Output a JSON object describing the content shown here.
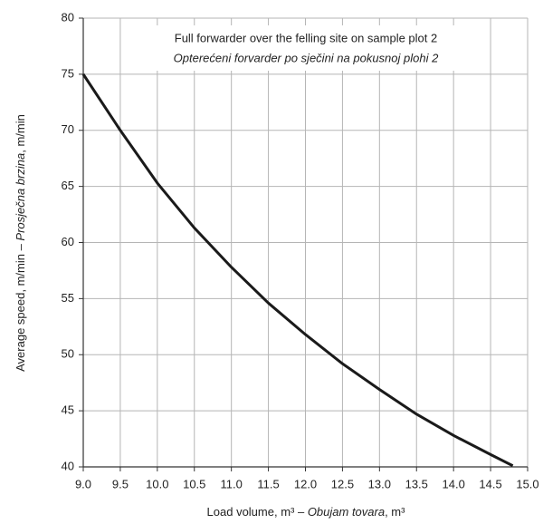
{
  "chart_data": {
    "type": "line",
    "title": [
      "Full forwarder over the felling site on sample plot 2",
      "Opterećeni forvarder po sječini na pokusnoj plohi 2"
    ],
    "xlabel": [
      "Load volume, m³ – ",
      "Obujam tovara",
      ", m³"
    ],
    "ylabel": [
      "Average speed, m/min – ",
      "Prosječna brzina",
      ", m/min"
    ],
    "x": [
      9.0,
      9.5,
      10.0,
      10.5,
      11.0,
      11.5,
      12.0,
      12.5,
      13.0,
      13.5,
      14.0,
      14.5,
      14.8
    ],
    "values": [
      75,
      70,
      65.3,
      61.3,
      57.8,
      54.6,
      51.8,
      49.2,
      46.9,
      44.7,
      42.8,
      41.1,
      40.1
    ],
    "color": "#1a1a1a",
    "xlim": [
      9.0,
      15.0
    ],
    "ylim": [
      40,
      80
    ],
    "xticks": [
      {
        "value": 9.0,
        "label": "9.0"
      },
      9.5,
      {
        "value": 10.0,
        "label": "10.0"
      },
      10.5,
      {
        "value": 11.0,
        "label": "11.0"
      },
      11.5,
      {
        "value": 12.0,
        "label": "12.0"
      },
      12.5,
      {
        "value": 13.0,
        "label": "13.0"
      },
      13.5,
      {
        "value": 14.0,
        "label": "14.0"
      },
      14.5,
      {
        "value": 15.0,
        "label": "15.0"
      }
    ],
    "yticks": [
      40,
      45,
      50,
      55,
      60,
      65,
      70,
      75,
      80
    ],
    "grid": true
  }
}
